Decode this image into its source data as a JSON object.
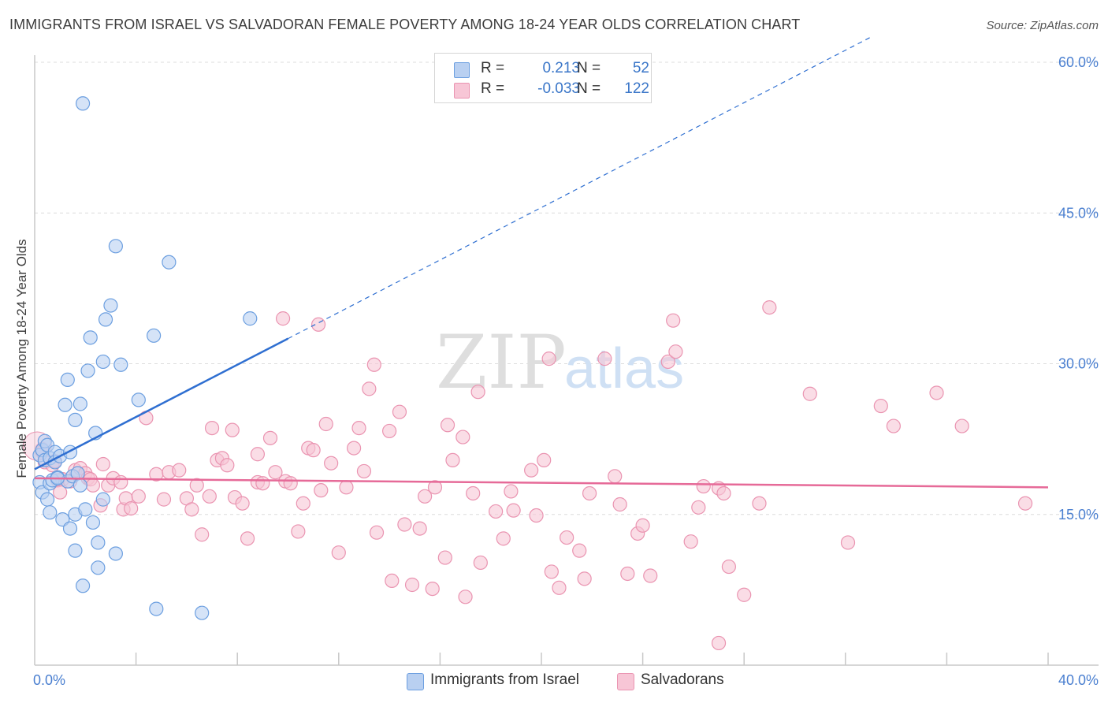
{
  "title": "IMMIGRANTS FROM ISRAEL VS SALVADORAN FEMALE POVERTY AMONG 18-24 YEAR OLDS CORRELATION CHART",
  "source": "Source: ZipAtlas.com",
  "watermark": {
    "zip": "ZIP",
    "atlas": "atlas"
  },
  "legend": {
    "series1": {
      "r_label": "R =",
      "r_value": "0.213",
      "n_label": "N =",
      "n_value": "52"
    },
    "series2": {
      "r_label": "R =",
      "r_value": "-0.033",
      "n_label": "N =",
      "n_value": "122"
    }
  },
  "bottom_legend": {
    "series1": "Immigrants from Israel",
    "series2": "Salvadorans"
  },
  "colors": {
    "series1_fill": "#b9d0f1",
    "series1_stroke": "#6c9fe0",
    "series1_line": "#2f6fd1",
    "series2_fill": "#f7c6d6",
    "series2_stroke": "#ea94b1",
    "series2_line": "#e66a98",
    "tick_text": "#4a7fd0",
    "grid": "#dcdcdc"
  },
  "chart_data": {
    "type": "scatter",
    "ylabel": "Female Poverty Among 18-24 Year Olds",
    "xlim": [
      0,
      40
    ],
    "ylim": [
      0,
      60
    ],
    "y_ticks": [
      {
        "v": 15,
        "label": "15.0%"
      },
      {
        "v": 30,
        "label": "30.0%"
      },
      {
        "v": 45,
        "label": "45.0%"
      },
      {
        "v": 60,
        "label": "60.0%"
      }
    ],
    "x_tick_labels": {
      "min": "0.0%",
      "max": "40.0%"
    },
    "grid": "horizontal dashed",
    "series": [
      {
        "name": "Immigrants from Israel",
        "trend": {
          "x0": 0,
          "y0": 19.5,
          "x1": 10,
          "y1": 32.5,
          "dashed_to_x": 33,
          "dashed_to_y": 62.5
        },
        "points": [
          [
            0.2,
            20.9
          ],
          [
            0.2,
            18.2
          ],
          [
            0.3,
            17.2
          ],
          [
            0.3,
            21.4
          ],
          [
            0.4,
            22.3
          ],
          [
            0.4,
            20.4
          ],
          [
            0.5,
            21.9
          ],
          [
            0.5,
            16.5
          ],
          [
            0.6,
            18.1
          ],
          [
            0.6,
            15.2
          ],
          [
            0.6,
            20.6
          ],
          [
            0.7,
            18.4
          ],
          [
            0.8,
            21.2
          ],
          [
            0.8,
            20.2
          ],
          [
            0.9,
            18.7
          ],
          [
            1.0,
            20.8
          ],
          [
            1.1,
            14.5
          ],
          [
            1.2,
            25.9
          ],
          [
            1.3,
            28.4
          ],
          [
            1.3,
            18.3
          ],
          [
            1.4,
            13.6
          ],
          [
            1.4,
            21.2
          ],
          [
            1.5,
            18.8
          ],
          [
            1.6,
            24.4
          ],
          [
            1.6,
            15.0
          ],
          [
            1.6,
            11.4
          ],
          [
            1.7,
            19.1
          ],
          [
            1.8,
            17.9
          ],
          [
            1.8,
            26.0
          ],
          [
            1.9,
            7.9
          ],
          [
            2.0,
            15.5
          ],
          [
            2.1,
            29.3
          ],
          [
            2.2,
            32.6
          ],
          [
            2.3,
            14.2
          ],
          [
            2.4,
            23.1
          ],
          [
            2.5,
            12.2
          ],
          [
            2.5,
            9.7
          ],
          [
            2.7,
            16.5
          ],
          [
            2.7,
            30.2
          ],
          [
            2.8,
            34.4
          ],
          [
            3.0,
            35.8
          ],
          [
            3.2,
            11.1
          ],
          [
            3.2,
            41.7
          ],
          [
            3.4,
            29.9
          ],
          [
            4.1,
            26.4
          ],
          [
            4.7,
            32.8
          ],
          [
            4.8,
            5.6
          ],
          [
            5.3,
            40.1
          ],
          [
            6.6,
            5.2
          ],
          [
            8.5,
            34.5
          ],
          [
            1.9,
            55.9
          ],
          [
            0.9,
            18.6
          ]
        ]
      },
      {
        "name": "Salvadorans",
        "trend": {
          "x0": 0,
          "y0": 18.6,
          "x1": 40,
          "y1": 17.7
        },
        "points": [
          [
            0.3,
            21.5
          ],
          [
            0.3,
            21.2
          ],
          [
            0.4,
            20.2
          ],
          [
            0.7,
            19.9
          ],
          [
            0.8,
            20.3
          ],
          [
            0.9,
            18.4
          ],
          [
            1.0,
            17.2
          ],
          [
            1.1,
            18.5
          ],
          [
            1.4,
            18.3
          ],
          [
            1.6,
            19.4
          ],
          [
            1.8,
            19.6
          ],
          [
            2.0,
            19.1
          ],
          [
            2.1,
            18.6
          ],
          [
            2.2,
            18.5
          ],
          [
            2.3,
            17.9
          ],
          [
            2.6,
            15.9
          ],
          [
            2.7,
            20.0
          ],
          [
            2.9,
            17.9
          ],
          [
            3.1,
            18.6
          ],
          [
            3.4,
            18.2
          ],
          [
            3.5,
            15.5
          ],
          [
            3.6,
            16.6
          ],
          [
            3.8,
            15.6
          ],
          [
            4.1,
            16.8
          ],
          [
            4.4,
            24.6
          ],
          [
            4.8,
            19.0
          ],
          [
            5.1,
            16.5
          ],
          [
            5.3,
            19.2
          ],
          [
            5.7,
            19.4
          ],
          [
            6.0,
            16.6
          ],
          [
            6.2,
            15.5
          ],
          [
            6.4,
            17.9
          ],
          [
            6.6,
            13.0
          ],
          [
            6.9,
            16.8
          ],
          [
            7.0,
            23.6
          ],
          [
            7.2,
            20.4
          ],
          [
            7.4,
            20.6
          ],
          [
            7.6,
            19.9
          ],
          [
            7.8,
            23.4
          ],
          [
            7.9,
            16.7
          ],
          [
            8.2,
            16.1
          ],
          [
            8.4,
            12.6
          ],
          [
            8.8,
            21.0
          ],
          [
            8.8,
            18.2
          ],
          [
            9.0,
            18.1
          ],
          [
            9.3,
            22.6
          ],
          [
            9.5,
            19.2
          ],
          [
            9.8,
            34.5
          ],
          [
            9.9,
            18.3
          ],
          [
            10.1,
            18.1
          ],
          [
            10.4,
            13.3
          ],
          [
            10.6,
            16.1
          ],
          [
            10.8,
            21.6
          ],
          [
            11.0,
            21.4
          ],
          [
            11.2,
            33.9
          ],
          [
            11.3,
            17.4
          ],
          [
            11.5,
            24.0
          ],
          [
            11.7,
            20.1
          ],
          [
            12.0,
            11.2
          ],
          [
            12.3,
            17.7
          ],
          [
            12.6,
            21.6
          ],
          [
            12.8,
            23.6
          ],
          [
            13.0,
            19.3
          ],
          [
            13.2,
            27.5
          ],
          [
            13.4,
            29.9
          ],
          [
            13.5,
            13.2
          ],
          [
            14.0,
            23.3
          ],
          [
            14.1,
            8.4
          ],
          [
            14.4,
            25.2
          ],
          [
            14.6,
            14.0
          ],
          [
            14.9,
            8.0
          ],
          [
            15.2,
            13.6
          ],
          [
            15.4,
            16.8
          ],
          [
            15.7,
            7.6
          ],
          [
            15.8,
            17.7
          ],
          [
            16.2,
            10.7
          ],
          [
            16.3,
            23.9
          ],
          [
            16.5,
            20.4
          ],
          [
            16.9,
            22.7
          ],
          [
            17.0,
            6.8
          ],
          [
            17.3,
            17.1
          ],
          [
            17.5,
            27.2
          ],
          [
            17.6,
            10.2
          ],
          [
            18.2,
            15.3
          ],
          [
            18.5,
            12.6
          ],
          [
            18.8,
            17.3
          ],
          [
            18.9,
            15.4
          ],
          [
            19.6,
            19.4
          ],
          [
            19.8,
            14.9
          ],
          [
            20.1,
            20.4
          ],
          [
            20.3,
            30.5
          ],
          [
            20.4,
            9.3
          ],
          [
            20.7,
            7.7
          ],
          [
            21.0,
            12.7
          ],
          [
            21.5,
            11.4
          ],
          [
            21.7,
            8.6
          ],
          [
            21.9,
            17.1
          ],
          [
            22.5,
            30.5
          ],
          [
            22.9,
            18.8
          ],
          [
            23.1,
            16.0
          ],
          [
            23.4,
            9.1
          ],
          [
            23.8,
            13.1
          ],
          [
            24.0,
            13.9
          ],
          [
            24.3,
            8.9
          ],
          [
            25.0,
            30.2
          ],
          [
            25.2,
            34.3
          ],
          [
            25.3,
            31.2
          ],
          [
            25.9,
            12.3
          ],
          [
            26.2,
            15.7
          ],
          [
            26.4,
            17.8
          ],
          [
            27.0,
            17.6
          ],
          [
            27.2,
            17.1
          ],
          [
            27.4,
            9.8
          ],
          [
            28.0,
            7.0
          ],
          [
            28.6,
            16.1
          ],
          [
            29.0,
            35.6
          ],
          [
            30.6,
            27.0
          ],
          [
            32.1,
            12.2
          ],
          [
            33.4,
            25.8
          ],
          [
            33.9,
            23.8
          ],
          [
            35.6,
            27.1
          ],
          [
            36.6,
            23.8
          ],
          [
            39.1,
            16.1
          ],
          [
            27.0,
            2.2
          ]
        ]
      }
    ]
  }
}
